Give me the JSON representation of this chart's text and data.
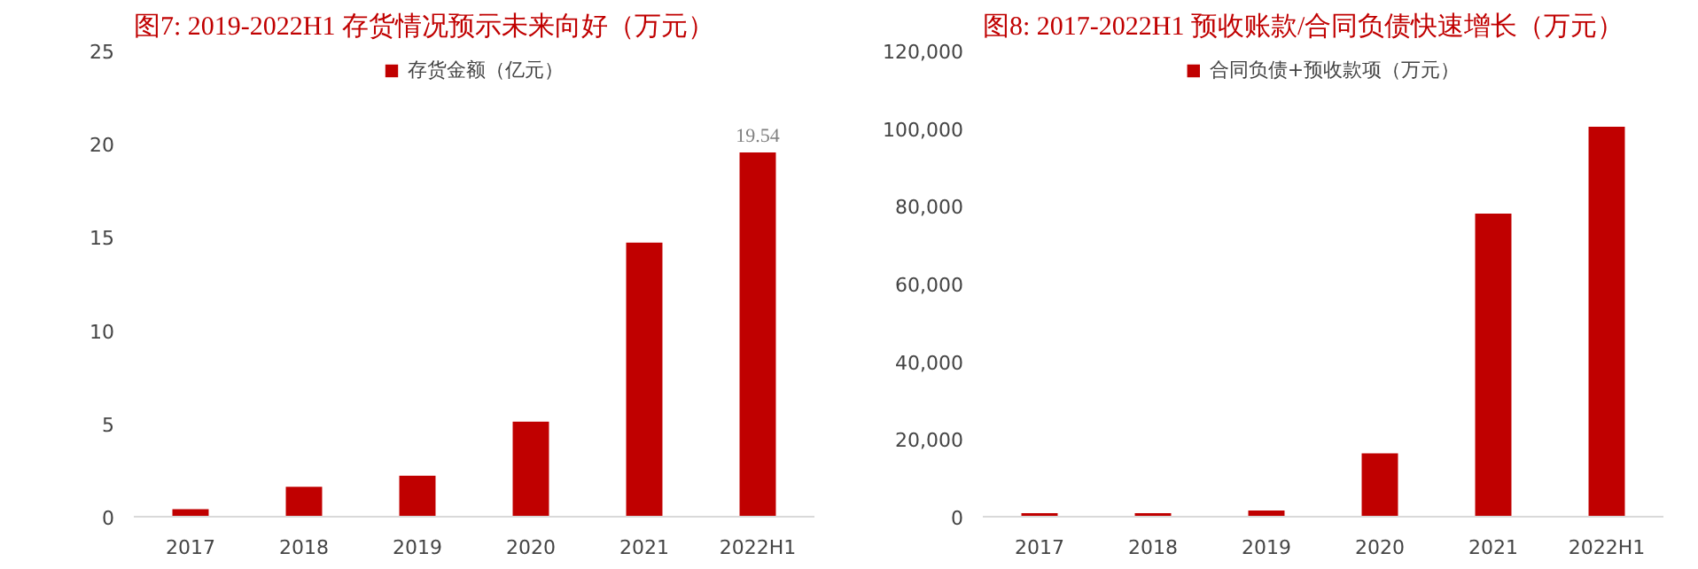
{
  "chart_data": [
    {
      "type": "bar",
      "title": "图7:  2019-2022H1 存货情况预示未来向好（万元）",
      "categories": [
        "2017",
        "2018",
        "2019",
        "2020",
        "2021",
        "2022H1"
      ],
      "series": [
        {
          "name": "存货金额（亿元）",
          "color": "#c00000",
          "values": [
            0.4,
            1.6,
            2.2,
            5.1,
            14.7,
            19.54
          ],
          "value_labels": [
            null,
            null,
            null,
            null,
            null,
            "19.54"
          ]
        }
      ],
      "ylim": [
        0,
        25
      ],
      "yticks": [
        0,
        5,
        10,
        15,
        20,
        25
      ],
      "grid": false,
      "legend": "top"
    },
    {
      "type": "bar",
      "title": "图8:  2017-2022H1 预收账款/合同负债快速增长（万元）",
      "categories": [
        "2017",
        "2018",
        "2019",
        "2020",
        "2021",
        "2022H1"
      ],
      "series": [
        {
          "name": "合同负债+预收款项（万元）",
          "color": "#c00000",
          "values": [
            900,
            900,
            1600,
            16300,
            78000,
            100400
          ]
        }
      ],
      "ylim": [
        0,
        120000
      ],
      "yticks": [
        0,
        {
          "value": 20000,
          "label": "20,000"
        },
        {
          "value": 40000,
          "label": "40,000"
        },
        {
          "value": 60000,
          "label": "60,000"
        },
        {
          "value": 80000,
          "label": "80,000"
        },
        {
          "value": 100000,
          "label": "100,000"
        },
        {
          "value": 120000,
          "label": "120,000"
        }
      ],
      "grid": false,
      "legend": "top"
    }
  ]
}
